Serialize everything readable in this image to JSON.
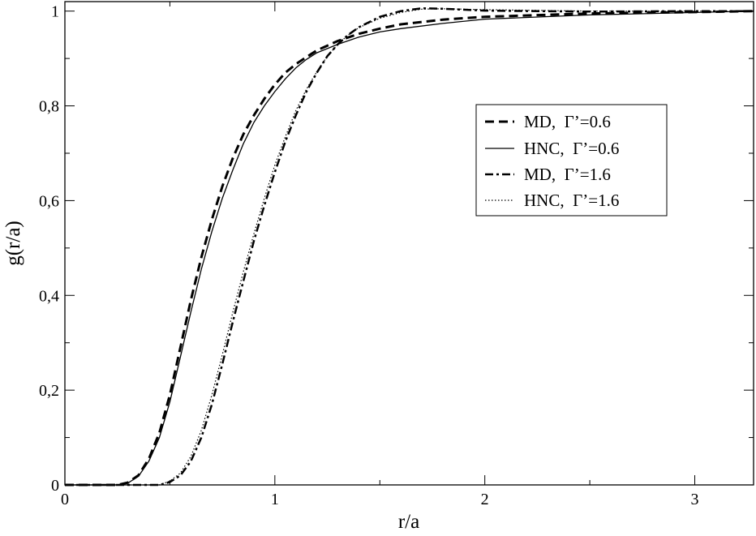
{
  "chart_data": {
    "type": "line",
    "title": "",
    "xlabel": "r/a",
    "ylabel": "g(r/a)",
    "xlim": [
      0,
      3.28
    ],
    "ylim": [
      0,
      1.02
    ],
    "grid": false,
    "legend_position": "upper-right",
    "x_ticks": [
      {
        "value": 0,
        "label": "0"
      },
      {
        "value": 1,
        "label": "1"
      },
      {
        "value": 2,
        "label": "2"
      },
      {
        "value": 3,
        "label": "3"
      }
    ],
    "y_ticks": [
      {
        "value": 0,
        "label": "0"
      },
      {
        "value": 0.2,
        "label": "0,2"
      },
      {
        "value": 0.4,
        "label": "0,4"
      },
      {
        "value": 0.6,
        "label": "0,6"
      },
      {
        "value": 0.8,
        "label": "0,8"
      },
      {
        "value": 1,
        "label": "1"
      }
    ],
    "series": [
      {
        "name": "MD,  Γ’=0.6",
        "style": "dashed",
        "color": "#000000",
        "x": [
          0,
          0.25,
          0.3,
          0.35,
          0.4,
          0.45,
          0.5,
          0.55,
          0.6,
          0.65,
          0.7,
          0.75,
          0.8,
          0.85,
          0.9,
          0.95,
          1.0,
          1.05,
          1.1,
          1.15,
          1.2,
          1.3,
          1.4,
          1.5,
          1.6,
          1.8,
          2.0,
          2.5,
          3.0,
          3.28
        ],
        "y": [
          0,
          0.0,
          0.005,
          0.02,
          0.055,
          0.11,
          0.19,
          0.29,
          0.39,
          0.48,
          0.56,
          0.63,
          0.69,
          0.74,
          0.78,
          0.815,
          0.845,
          0.87,
          0.888,
          0.903,
          0.917,
          0.937,
          0.952,
          0.963,
          0.972,
          0.982,
          0.988,
          0.995,
          0.998,
          1.0
        ]
      },
      {
        "name": "HNC,  Γ’=0.6",
        "style": "solid",
        "color": "#000000",
        "x": [
          0,
          0.25,
          0.3,
          0.35,
          0.4,
          0.45,
          0.5,
          0.55,
          0.6,
          0.65,
          0.7,
          0.75,
          0.8,
          0.85,
          0.9,
          0.95,
          1.0,
          1.05,
          1.1,
          1.15,
          1.2,
          1.3,
          1.4,
          1.5,
          1.6,
          1.8,
          2.0,
          2.5,
          3.0,
          3.28
        ],
        "y": [
          0,
          0.0,
          0.004,
          0.018,
          0.05,
          0.1,
          0.175,
          0.27,
          0.365,
          0.455,
          0.535,
          0.605,
          0.665,
          0.72,
          0.765,
          0.8,
          0.83,
          0.857,
          0.88,
          0.898,
          0.912,
          0.93,
          0.945,
          0.956,
          0.963,
          0.974,
          0.983,
          0.992,
          0.997,
          1.0
        ]
      },
      {
        "name": "MD,  Γ’=1.6",
        "style": "dashdot",
        "color": "#000000",
        "x": [
          0,
          0.45,
          0.5,
          0.55,
          0.6,
          0.65,
          0.7,
          0.75,
          0.8,
          0.85,
          0.9,
          0.95,
          1.0,
          1.05,
          1.1,
          1.15,
          1.2,
          1.25,
          1.3,
          1.35,
          1.4,
          1.5,
          1.6,
          1.7,
          1.8,
          2.0,
          2.5,
          3.0,
          3.28
        ],
        "y": [
          0,
          0.0,
          0.006,
          0.02,
          0.05,
          0.1,
          0.17,
          0.255,
          0.345,
          0.43,
          0.515,
          0.59,
          0.66,
          0.725,
          0.78,
          0.83,
          0.87,
          0.905,
          0.93,
          0.95,
          0.966,
          0.988,
          1.0,
          1.006,
          1.005,
          1.001,
          0.999,
          1.0,
          1.0
        ]
      },
      {
        "name": "HNC,  Γ’=1.6",
        "style": "dotted",
        "color": "#000000",
        "x": [
          0,
          0.45,
          0.5,
          0.55,
          0.6,
          0.65,
          0.7,
          0.75,
          0.8,
          0.85,
          0.9,
          0.95,
          1.0,
          1.05,
          1.1,
          1.15,
          1.2,
          1.25,
          1.3,
          1.35,
          1.4,
          1.5,
          1.6,
          1.7,
          1.8,
          2.0,
          2.5,
          3.0,
          3.28
        ],
        "y": [
          0,
          0.0,
          0.008,
          0.025,
          0.06,
          0.115,
          0.19,
          0.275,
          0.365,
          0.45,
          0.53,
          0.605,
          0.675,
          0.735,
          0.79,
          0.835,
          0.872,
          0.905,
          0.93,
          0.95,
          0.965,
          0.985,
          0.997,
          1.004,
          1.005,
          1.003,
          1.0,
          1.0,
          1.0
        ]
      }
    ]
  }
}
